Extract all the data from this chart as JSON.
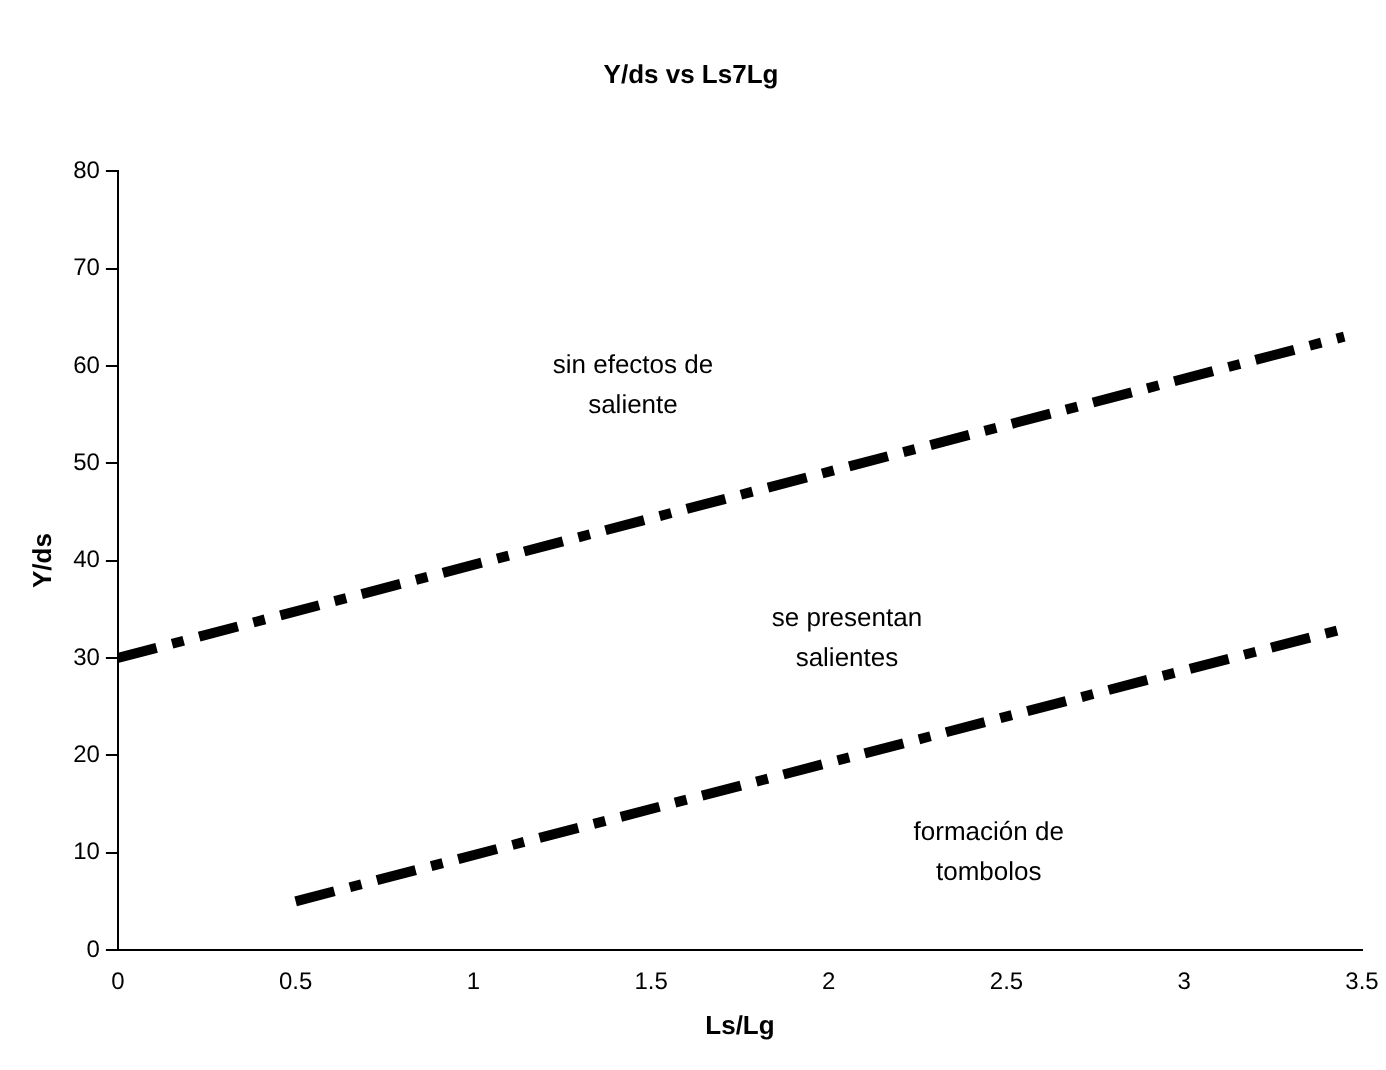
{
  "chart_data": {
    "type": "line",
    "title": "Y/ds vs Ls7Lg",
    "xlabel": "Ls/Lg",
    "ylabel": "Y/ds",
    "series": [
      {
        "x": [
          0,
          3.45
        ],
        "values": [
          30,
          63
        ],
        "color": "#000000"
      },
      {
        "x": [
          0.5,
          3.45
        ],
        "values": [
          5,
          33
        ],
        "color": "#000000"
      }
    ],
    "xlim": [
      0,
      3.5
    ],
    "xticks": [
      0,
      0.5,
      1,
      1.5,
      2,
      2.5,
      3,
      3.5
    ],
    "ylim": [
      0,
      80
    ],
    "yticks": [
      0,
      10,
      20,
      30,
      40,
      50,
      60,
      70,
      80
    ],
    "grid": false,
    "legend": false,
    "marker": "none",
    "line_style": "dashed",
    "annotations": [
      "sin efectos de\nsaliente",
      "se presentan\nsalientes",
      "formación de\ntombolos"
    ]
  }
}
